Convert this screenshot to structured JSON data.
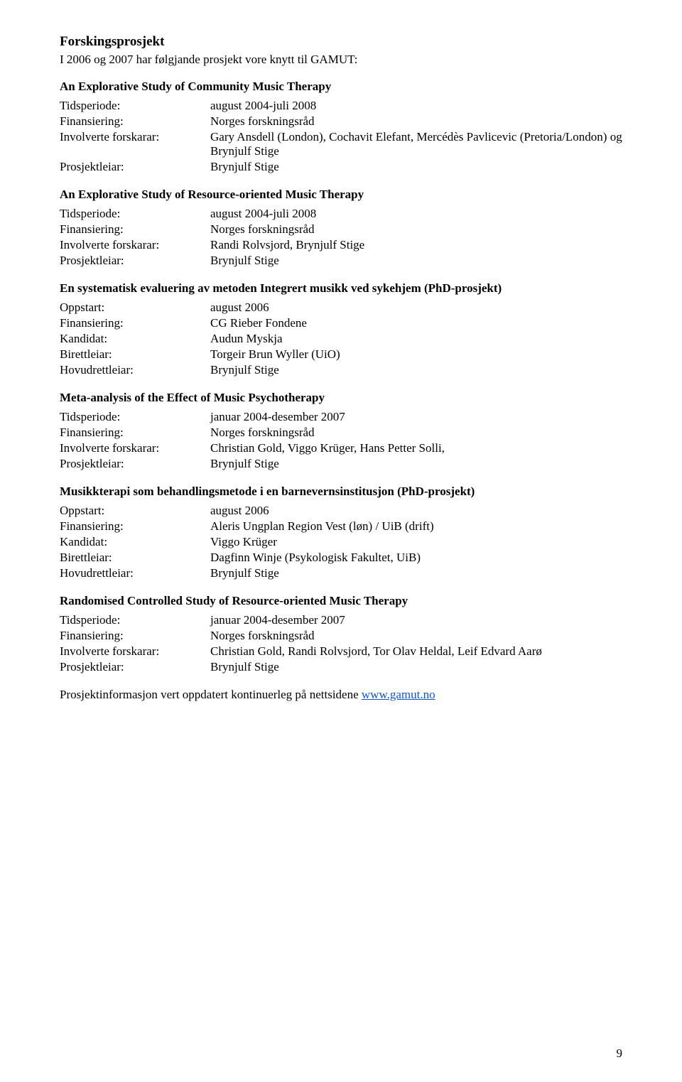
{
  "heading": "Forskingsprosjekt",
  "intro": "I 2006 og 2007 har følgjande prosjekt vore knytt til GAMUT:",
  "projects": [
    {
      "title": "An Explorative Study of Community Music Therapy",
      "rows": [
        {
          "key": "Tidsperiode:",
          "value": "august 2004-juli 2008"
        },
        {
          "key": "Finansiering:",
          "value": "Norges forskningsråd"
        },
        {
          "key": "Involverte forskarar:",
          "value": "Gary Ansdell (London), Cochavit Elefant, Mercédès Pavlicevic (Pretoria/London) og Brynjulf Stige"
        },
        {
          "key": "Prosjektleiar:",
          "value": "Brynjulf Stige"
        }
      ]
    },
    {
      "title": "An Explorative Study of Resource-oriented Music Therapy",
      "rows": [
        {
          "key": "Tidsperiode:",
          "value": "august 2004-juli 2008"
        },
        {
          "key": "Finansiering:",
          "value": "Norges forskningsråd"
        },
        {
          "key": "Involverte forskarar:",
          "value": "Randi Rolvsjord, Brynjulf Stige"
        },
        {
          "key": "Prosjektleiar:",
          "value": "Brynjulf Stige"
        }
      ]
    },
    {
      "title": "En systematisk evaluering av metoden Integrert musikk ved sykehjem (PhD-prosjekt)",
      "rows": [
        {
          "key": "Oppstart:",
          "value": "august 2006"
        },
        {
          "key": "Finansiering:",
          "value": "CG Rieber Fondene"
        },
        {
          "key": "Kandidat:",
          "value": "Audun Myskja"
        },
        {
          "key": "Birettleiar:",
          "value": "Torgeir Brun Wyller (UiO)"
        },
        {
          "key": "Hovudrettleiar:",
          "value": "Brynjulf Stige"
        }
      ]
    },
    {
      "title": "Meta-analysis of the Effect of Music Psychotherapy",
      "rows": [
        {
          "key": "Tidsperiode:",
          "value": "januar 2004-desember 2007"
        },
        {
          "key": "Finansiering:",
          "value": "Norges forskningsråd"
        },
        {
          "key": "Involverte forskarar:",
          "value": "Christian Gold, Viggo Krüger, Hans Petter Solli,"
        },
        {
          "key": "Prosjektleiar:",
          "value": "Brynjulf Stige"
        }
      ]
    },
    {
      "title": "Musikkterapi som behandlingsmetode i en barnevernsinstitusjon (PhD-prosjekt)",
      "rows": [
        {
          "key": "Oppstart:",
          "value": "august 2006"
        },
        {
          "key": "Finansiering:",
          "value": "Aleris Ungplan Region Vest (løn) / UiB (drift)"
        },
        {
          "key": "Kandidat:",
          "value": "Viggo Krüger"
        },
        {
          "key": "Birettleiar:",
          "value": "Dagfinn Winje (Psykologisk Fakultet, UiB)"
        },
        {
          "key": "Hovudrettleiar:",
          "value": "Brynjulf Stige"
        }
      ]
    },
    {
      "title": "Randomised Controlled Study of Resource-oriented Music Therapy",
      "rows": [
        {
          "key": "Tidsperiode:",
          "value": "januar 2004-desember 2007"
        },
        {
          "key": "Finansiering:",
          "value": "Norges forskningsråd"
        },
        {
          "key": "Involverte forskarar:",
          "value": "Christian Gold, Randi Rolvsjord, Tor Olav Heldal, Leif Edvard Aarø"
        },
        {
          "key": "Prosjektleiar:",
          "value": "Brynjulf Stige"
        }
      ]
    }
  ],
  "footer": {
    "text_prefix": "Prosjektinformasjon vert oppdatert kontinuerleg på nettsidene ",
    "link_text": "www.gamut.no"
  },
  "page_number": "9"
}
